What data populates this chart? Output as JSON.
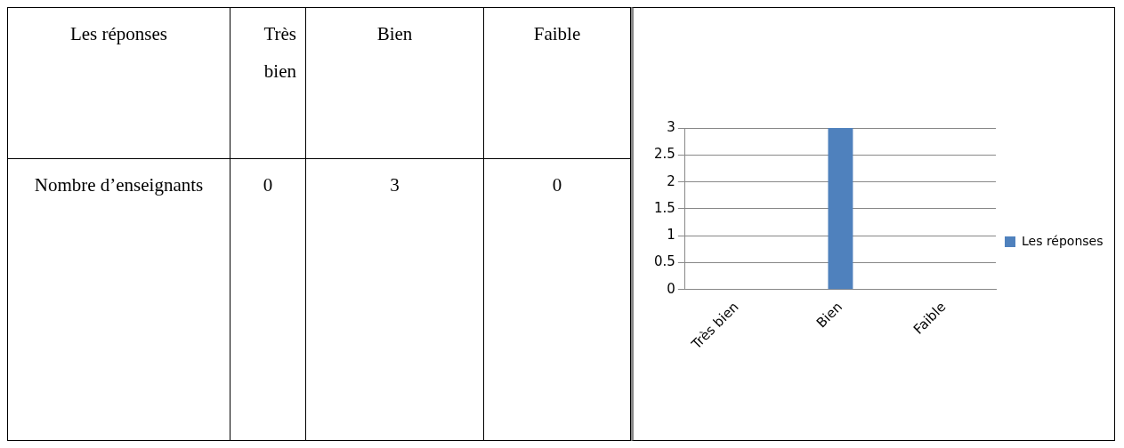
{
  "chart_data": {
    "type": "bar",
    "categories": [
      "Très bien",
      "Bien",
      "Faible"
    ],
    "series": [
      {
        "name": "Les réponses",
        "color": "#4f81bd",
        "values": [
          0,
          3,
          0
        ]
      }
    ],
    "ylim": [
      0,
      3
    ],
    "yticks": [
      0,
      0.5,
      1,
      1.5,
      2,
      2.5,
      3
    ],
    "grid": "y",
    "legend": "right",
    "annotations": [
      "Nombre d’enseignants",
      "0",
      "3",
      "0"
    ]
  }
}
